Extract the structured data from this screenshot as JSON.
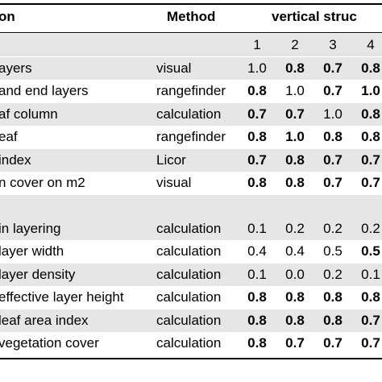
{
  "header": {
    "col_parameter": "on",
    "col_method": "Method",
    "col_vertical": "vertical struc",
    "columns": [
      "1",
      "2",
      "3",
      "4"
    ]
  },
  "rows": [
    {
      "label": "ayers",
      "method": "visual",
      "values": [
        "1.0",
        "0.8",
        "0.7",
        "0.8"
      ],
      "bold": [
        false,
        true,
        true,
        true
      ]
    },
    {
      "label": "and end layers",
      "method": "rangefinder",
      "values": [
        "0.8",
        "1.0",
        "0.7",
        "1.0"
      ],
      "bold": [
        true,
        false,
        true,
        true
      ]
    },
    {
      "label": "af column",
      "method": "calculation",
      "values": [
        "0.7",
        "0.7",
        "1.0",
        "0.8"
      ],
      "bold": [
        true,
        true,
        false,
        true
      ]
    },
    {
      "label": "eaf",
      "method": "rangefinder",
      "values": [
        "0.8",
        "1.0",
        "0.8",
        "0.8"
      ],
      "bold": [
        true,
        true,
        true,
        true
      ]
    },
    {
      "label": "index",
      "method": "Licor",
      "values": [
        "0.7",
        "0.8",
        "0.7",
        "0.7"
      ],
      "bold": [
        true,
        true,
        true,
        true
      ]
    },
    {
      "label": "n cover on m2",
      "method": "visual",
      "values": [
        "0.8",
        "0.8",
        "0.7",
        "0.7"
      ],
      "bold": [
        true,
        true,
        true,
        true
      ]
    },
    {
      "label": "in layering",
      "method": "calculation",
      "values": [
        "0.1",
        "0.2",
        "0.2",
        "0.2"
      ],
      "bold": [
        false,
        false,
        false,
        false
      ]
    },
    {
      "label": "layer width",
      "method": "calculation",
      "values": [
        "0.4",
        "0.4",
        "0.5",
        "0.5"
      ],
      "bold": [
        false,
        false,
        false,
        true
      ]
    },
    {
      "label": "layer density",
      "method": "calculation",
      "values": [
        "0.1",
        "0.0",
        "0.2",
        "0.1"
      ],
      "bold": [
        false,
        false,
        false,
        false
      ]
    },
    {
      "label": "effective layer height",
      "method": "calculation",
      "values": [
        "0.8",
        "0.8",
        "0.8",
        "0.8"
      ],
      "bold": [
        true,
        true,
        true,
        true
      ]
    },
    {
      "label": "leaf area index",
      "method": "calculation",
      "values": [
        "0.8",
        "0.8",
        "0.8",
        "0.7"
      ],
      "bold": [
        true,
        true,
        true,
        true
      ]
    },
    {
      "label": "vegetation cover",
      "method": "calculation",
      "values": [
        "0.8",
        "0.7",
        "0.7",
        "0.7"
      ],
      "bold": [
        true,
        true,
        true,
        true
      ]
    }
  ]
}
